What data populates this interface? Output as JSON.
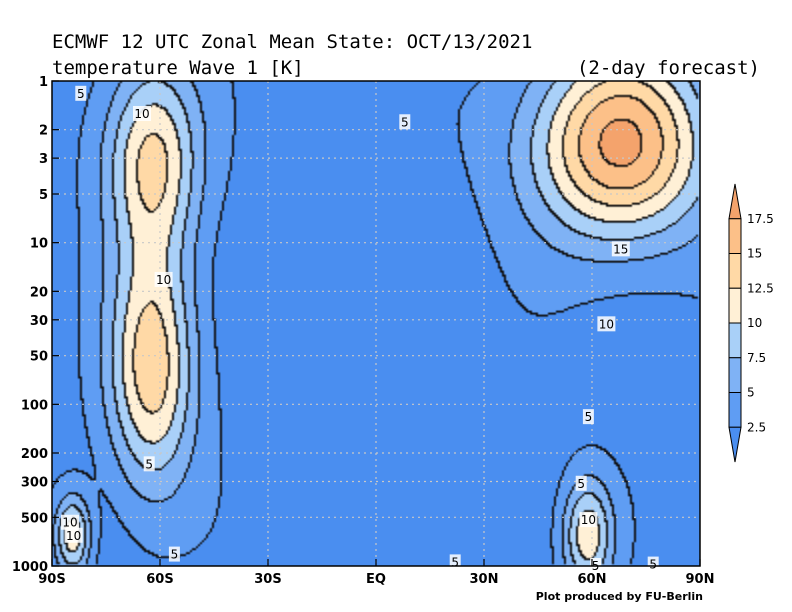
{
  "chart_data": {
    "type": "heatmap",
    "title": "ECMWF 12 UTC Zonal Mean State: OCT/13/2021",
    "subtitle": "temperature Wave 1 [K]",
    "forecast_note": "(2-day forecast)",
    "credit": "Plot produced by FU-Berlin",
    "x_ticks": [
      "90S",
      "60S",
      "30S",
      "EQ",
      "30N",
      "60N",
      "90N"
    ],
    "x_tick_values": [
      -90,
      -60,
      -30,
      0,
      30,
      60,
      90
    ],
    "y_ticks": [
      "1",
      "2",
      "3",
      "5",
      "10",
      "20",
      "30",
      "50",
      "100",
      "200",
      "300",
      "500",
      "1000"
    ],
    "y_tick_values": [
      1,
      2,
      3,
      5,
      10,
      20,
      30,
      50,
      100,
      200,
      300,
      500,
      1000
    ],
    "y_scale": "log",
    "y_inverted": true,
    "xlim": [
      -90,
      90
    ],
    "ylim": [
      1,
      1000
    ],
    "grid": true,
    "colorbar": {
      "labels": [
        "17.5",
        "15",
        "12.5",
        "10",
        "7.5",
        "5",
        "2.5"
      ],
      "levels": [
        0,
        2.5,
        5,
        7.5,
        10,
        12.5,
        15,
        17.5
      ],
      "colors": [
        "#4a8ef0",
        "#5f9df3",
        "#7fb2f5",
        "#a9d0f8",
        "#fff0d6",
        "#ffd9a6",
        "#fcc088",
        "#f4a36c"
      ]
    },
    "contour_labels": [
      {
        "text": "5",
        "lat": -82,
        "p": 1.2
      },
      {
        "text": "10",
        "lat": -65,
        "p": 1.6
      },
      {
        "text": "5",
        "lat": 8,
        "p": 1.8
      },
      {
        "text": "15",
        "lat": 68,
        "p": 11
      },
      {
        "text": "10",
        "lat": -59,
        "p": 17
      },
      {
        "text": "10",
        "lat": 64,
        "p": 32
      },
      {
        "text": "5",
        "lat": 59,
        "p": 120
      },
      {
        "text": "5",
        "lat": -63,
        "p": 235
      },
      {
        "text": "5",
        "lat": 57,
        "p": 310
      },
      {
        "text": "10",
        "lat": -85,
        "p": 540
      },
      {
        "text": "10",
        "lat": -84,
        "p": 650
      },
      {
        "text": "10",
        "lat": 59,
        "p": 520
      },
      {
        "text": "5",
        "lat": -56,
        "p": 850
      },
      {
        "text": "5",
        "lat": 22,
        "p": 950
      },
      {
        "text": "5",
        "lat": 61,
        "p": 1000
      },
      {
        "text": "5",
        "lat": 77,
        "p": 980
      }
    ],
    "features": [
      {
        "kind": "max",
        "lat": 68,
        "p": 2.5,
        "value": 17.5,
        "sx": 25,
        "sy": 0.6
      },
      {
        "kind": "max",
        "lat": -62,
        "p": 3,
        "value": 12.5,
        "sx": 13,
        "sy": 0.6
      },
      {
        "kind": "max",
        "lat": -62,
        "p": 60,
        "value": 13.5,
        "sx": 12,
        "sy": 0.75
      },
      {
        "kind": "max",
        "lat": 59,
        "p": 650,
        "value": 11,
        "sx": 7,
        "sy": 0.35
      },
      {
        "kind": "max",
        "lat": -84,
        "p": 650,
        "value": 11,
        "sx": 5,
        "sy": 0.25
      }
    ]
  }
}
